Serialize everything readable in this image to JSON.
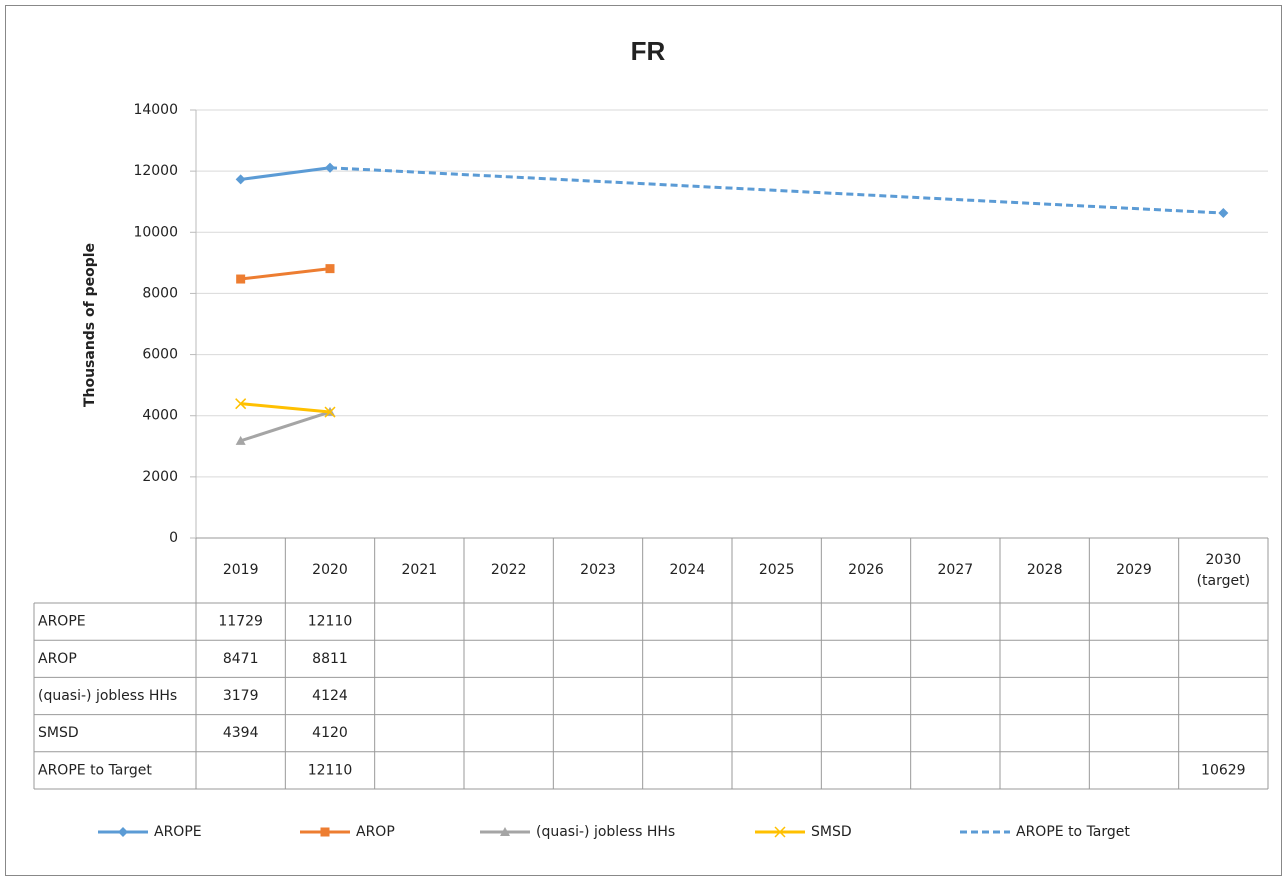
{
  "chart_data": {
    "type": "line",
    "title": "FR",
    "y_label": "Thousands of people",
    "categories": [
      "2019",
      "2020",
      "2021",
      "2022",
      "2023",
      "2024",
      "2025",
      "2026",
      "2027",
      "2028",
      "2029",
      "2030 (target)"
    ],
    "series": [
      {
        "name": "AROPE",
        "color": "#5b9bd5",
        "marker": "diamond",
        "dashed": false,
        "values": [
          11729,
          12110,
          null,
          null,
          null,
          null,
          null,
          null,
          null,
          null,
          null,
          null
        ]
      },
      {
        "name": "AROP",
        "color": "#ed7d31",
        "marker": "square",
        "dashed": false,
        "values": [
          8471,
          8811,
          null,
          null,
          null,
          null,
          null,
          null,
          null,
          null,
          null,
          null
        ]
      },
      {
        "name": "(quasi-) jobless HHs",
        "color": "#a5a5a5",
        "marker": "triangle",
        "dashed": false,
        "values": [
          3179,
          4124,
          null,
          null,
          null,
          null,
          null,
          null,
          null,
          null,
          null,
          null
        ]
      },
      {
        "name": "SMSD",
        "color": "#ffc000",
        "marker": "x",
        "dashed": false,
        "values": [
          4394,
          4120,
          null,
          null,
          null,
          null,
          null,
          null,
          null,
          null,
          null,
          null
        ]
      },
      {
        "name": "AROPE to Target",
        "color": "#5b9bd5",
        "marker": "diamond",
        "dashed": true,
        "values": [
          null,
          12110,
          null,
          null,
          null,
          null,
          null,
          null,
          null,
          null,
          null,
          10629
        ]
      }
    ],
    "connect_gaps": true,
    "ylim": [
      0,
      14000
    ],
    "yticks": [
      0,
      2000,
      4000,
      6000,
      8000,
      10000,
      12000,
      14000
    ],
    "grid": true,
    "legend": "bottom"
  }
}
